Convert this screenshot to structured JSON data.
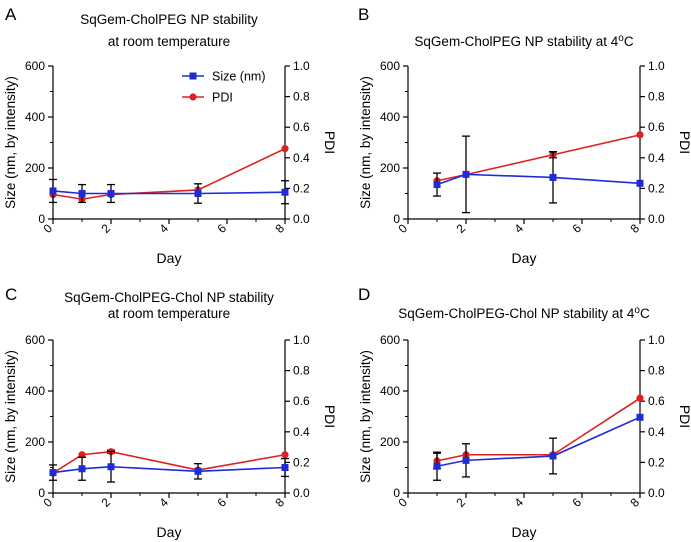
{
  "colors": {
    "size_series": "#1f2bd6",
    "pdi_series": "#e02020",
    "axis": "#000000",
    "error_bar": "#000000"
  },
  "chart_data": [
    {
      "panel_label": "A",
      "type": "line",
      "title_lines": [
        "SqGem-CholPEG NP stability",
        "at room temperature"
      ],
      "xlabel": "Day",
      "ylabel": "Size (nm, by intensity)",
      "y2label": "PDI",
      "xlim": [
        0,
        8
      ],
      "ylim": [
        0,
        600
      ],
      "y2lim": [
        0,
        1.0
      ],
      "xticks": [
        "0",
        "2",
        "4",
        "6",
        "8"
      ],
      "yticks": [
        "0",
        "200",
        "400",
        "600"
      ],
      "y2ticks": [
        "0.0",
        "0.2",
        "0.4",
        "0.6",
        "0.8",
        "1.0"
      ],
      "legend": {
        "position": "top-right",
        "entries": [
          "Size (nm)",
          "PDI"
        ]
      },
      "series": [
        {
          "name": "Size (nm)",
          "axis": "left",
          "marker": "square",
          "x": [
            0,
            1,
            2,
            5,
            8
          ],
          "values": [
            110,
            100,
            100,
            100,
            105
          ],
          "err": [
            45,
            35,
            35,
            38,
            45
          ]
        },
        {
          "name": "PDI",
          "axis": "right",
          "marker": "circle",
          "x": [
            0,
            1,
            2,
            5,
            8
          ],
          "values": [
            0.16,
            0.13,
            0.16,
            0.19,
            0.46
          ],
          "err": [
            0,
            0,
            0,
            0,
            0
          ]
        }
      ]
    },
    {
      "panel_label": "B",
      "type": "line",
      "title_lines": [
        "SqGem-CholPEG NP stability at 4ºC"
      ],
      "xlabel": "Day",
      "ylabel": "Size (nm, by intensity)",
      "y2label": "PDI",
      "xlim": [
        0,
        8
      ],
      "ylim": [
        0,
        600
      ],
      "y2lim": [
        0,
        1.0
      ],
      "xticks": [
        "0",
        "2",
        "4",
        "6",
        "8"
      ],
      "yticks": [
        "0",
        "200",
        "400",
        "600"
      ],
      "y2ticks": [
        "0.0",
        "0.2",
        "0.4",
        "0.6",
        "0.8",
        "1.0"
      ],
      "series": [
        {
          "name": "Size (nm)",
          "axis": "left",
          "marker": "square",
          "x": [
            1,
            2,
            5,
            8
          ],
          "values": [
            135,
            175,
            163,
            140
          ],
          "err": [
            45,
            150,
            100,
            0
          ]
        },
        {
          "name": "PDI",
          "axis": "right",
          "marker": "circle",
          "x": [
            1,
            2,
            5,
            8
          ],
          "values": [
            0.25,
            0.29,
            0.42,
            0.55
          ],
          "err": [
            0,
            0,
            0.02,
            0
          ]
        }
      ]
    },
    {
      "panel_label": "C",
      "type": "line",
      "title_lines": [
        "SqGem-CholPEG-Chol NP stability",
        "at room temperature"
      ],
      "xlabel": "Day",
      "ylabel": "Size (nm, by intensity)",
      "y2label": "PDI",
      "xlim": [
        0,
        8
      ],
      "ylim": [
        0,
        600
      ],
      "y2lim": [
        0,
        1.0
      ],
      "xticks": [
        "0",
        "2",
        "4",
        "6",
        "8"
      ],
      "yticks": [
        "0",
        "200",
        "400",
        "600"
      ],
      "y2ticks": [
        "0.0",
        "0.2",
        "0.4",
        "0.6",
        "0.8",
        "1.0"
      ],
      "series": [
        {
          "name": "Size (nm)",
          "axis": "left",
          "marker": "square",
          "x": [
            0,
            1,
            2,
            5,
            8
          ],
          "values": [
            80,
            95,
            103,
            85,
            100
          ],
          "err": [
            30,
            45,
            60,
            30,
            35
          ]
        },
        {
          "name": "PDI",
          "axis": "right",
          "marker": "circle",
          "x": [
            0,
            1,
            2,
            5,
            8
          ],
          "values": [
            0.13,
            0.25,
            0.27,
            0.15,
            0.25
          ],
          "err": [
            0,
            0,
            0.01,
            0,
            0
          ]
        }
      ]
    },
    {
      "panel_label": "D",
      "type": "line",
      "title_lines": [
        "SqGem-CholPEG-Chol NP stability at 4ºC"
      ],
      "xlabel": "Day",
      "ylabel": "Size (nm, by intensity)",
      "y2label": "PDI",
      "xlim": [
        0,
        8
      ],
      "ylim": [
        0,
        600
      ],
      "y2lim": [
        0,
        1.0
      ],
      "xticks": [
        "0",
        "2",
        "4",
        "6",
        "8"
      ],
      "yticks": [
        "0",
        "200",
        "400",
        "600"
      ],
      "y2ticks": [
        "0.0",
        "0.2",
        "0.4",
        "0.6",
        "0.8",
        "1.0"
      ],
      "series": [
        {
          "name": "Size (nm)",
          "axis": "left",
          "marker": "square",
          "x": [
            1,
            2,
            5,
            8
          ],
          "values": [
            105,
            128,
            145,
            297
          ],
          "err": [
            55,
            65,
            70,
            0
          ]
        },
        {
          "name": "PDI",
          "axis": "right",
          "marker": "circle",
          "x": [
            1,
            2,
            5,
            8
          ],
          "values": [
            0.21,
            0.25,
            0.25,
            0.62
          ],
          "err": [
            0.05,
            0,
            0,
            0
          ]
        }
      ]
    }
  ]
}
